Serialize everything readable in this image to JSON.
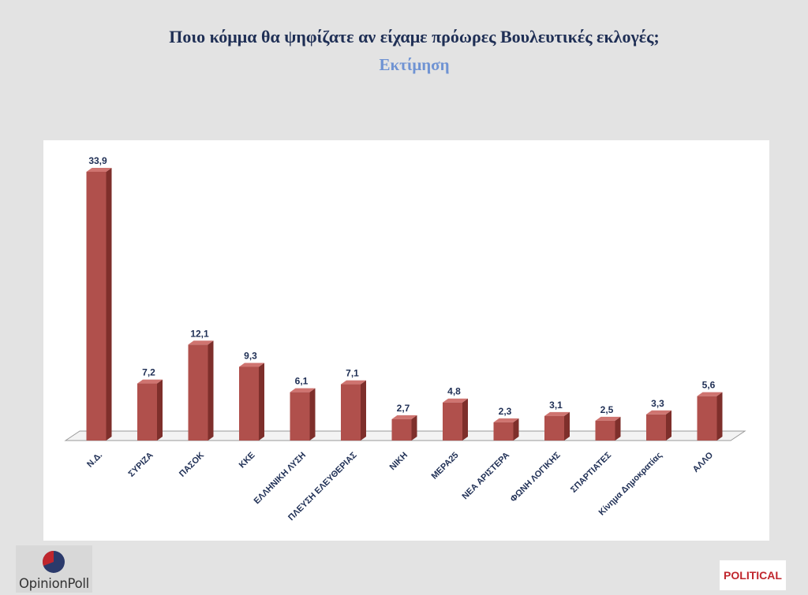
{
  "header": {
    "title": "Ποιο κόμμα θα ψηφίζατε αν είχαμε πρόωρες Βουλευτικές εκλογές;",
    "subtitle": "Εκτίμηση"
  },
  "chart_data": {
    "type": "bar",
    "title": "Ποιο κόμμα θα ψηφίζατε αν είχαμε πρόωρες Βουλευτικές εκλογές;",
    "subtitle": "Εκτίμηση",
    "categories": [
      "Ν.Δ.",
      "ΣΥΡΙΖΑ",
      "ΠΑΣΟΚ",
      "ΚΚΕ",
      "ΕΛΛΗΝΙΚΗ ΛΥΣΗ",
      "ΠΛΕΥΣΗ ΕΛΕΥΘΕΡΙΑΣ",
      "ΝΙΚΗ",
      "ΜΕΡΑ25",
      "ΝΕΑ ΑΡΙΣΤΕΡΑ",
      "ΦΩΝΗ ΛΟΓΙΚΗΣ",
      "ΣΠΑΡΤΙΑΤΕΣ",
      "Κίνημα Δημοκρατίας",
      "ΑΛΛΟ"
    ],
    "values": [
      33.9,
      7.2,
      12.1,
      9.3,
      6.1,
      7.1,
      2.7,
      4.8,
      2.3,
      3.1,
      2.5,
      3.3,
      5.6
    ],
    "labels": [
      "33,9",
      "7,2",
      "12,1",
      "9,3",
      "6,1",
      "7,1",
      "2,7",
      "4,8",
      "2,3",
      "3,1",
      "2,5",
      "3,3",
      "5,6"
    ],
    "ylim": [
      0,
      33.9
    ],
    "grid": false,
    "style": "3d-column",
    "colors": {
      "bar_front": "#b0504c",
      "bar_side": "#7e2f2b",
      "bar_top": "#cf7470",
      "label": "#1f2f55",
      "floor": "#f3f3f3"
    }
  },
  "logos": {
    "left_text": "OpinionPoll",
    "left_colors": {
      "red": "#c0262d",
      "navy": "#2b3a6b"
    },
    "right_text": "POLITICAL"
  }
}
